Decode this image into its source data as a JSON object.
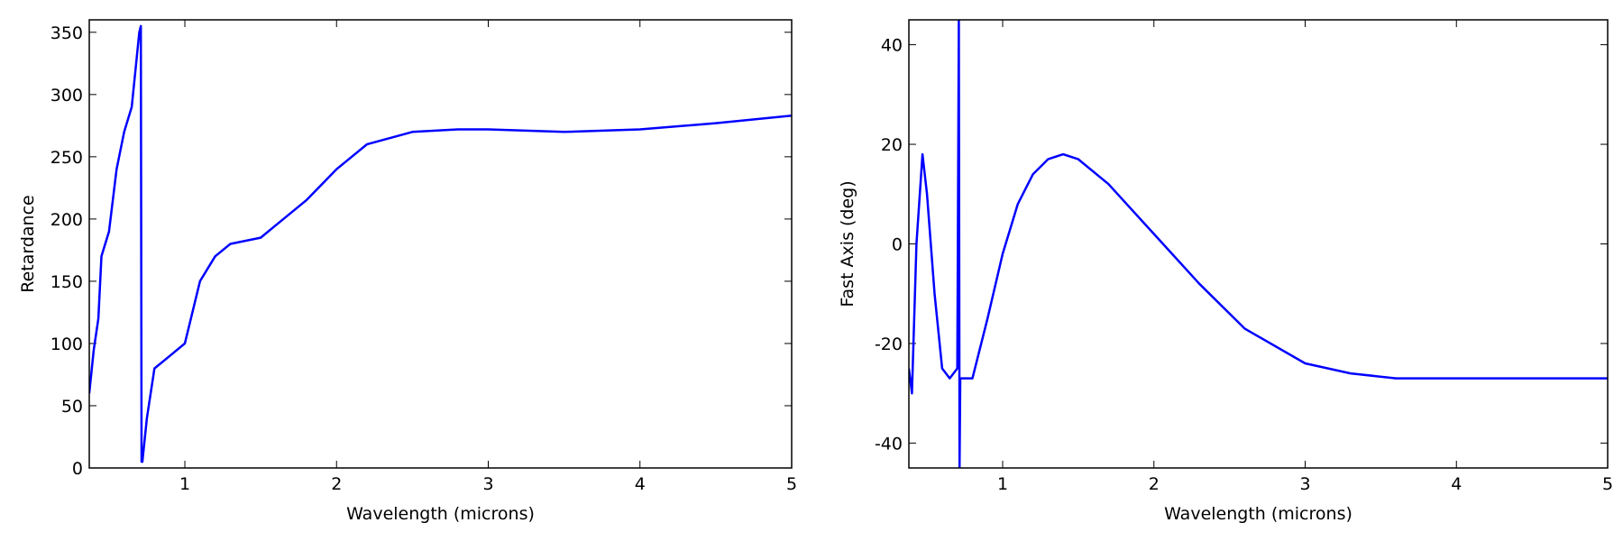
{
  "chart_data": [
    {
      "type": "line",
      "x_label": "Wavelength (microns)",
      "y_label": "Retardance",
      "xlim": [
        0.37,
        5
      ],
      "ylim": [
        0,
        360
      ],
      "xticks": [
        1,
        2,
        3,
        4,
        5
      ],
      "yticks": [
        0,
        50,
        100,
        150,
        200,
        250,
        300,
        350
      ],
      "x": [
        0.37,
        0.4,
        0.43,
        0.45,
        0.5,
        0.55,
        0.6,
        0.65,
        0.7,
        0.71,
        0.715,
        0.72,
        0.75,
        0.8,
        0.9,
        1.0,
        1.1,
        1.2,
        1.3,
        1.5,
        1.6,
        1.8,
        2.0,
        2.2,
        2.5,
        2.8,
        3.0,
        3.5,
        4.0,
        4.5,
        5.0
      ],
      "series": [
        {
          "color": "#0000ff",
          "values": [
            60,
            95,
            120,
            170,
            190,
            240,
            270,
            290,
            350,
            355,
            5,
            5,
            40,
            80,
            90,
            100,
            150,
            170,
            180,
            185,
            195,
            215,
            240,
            260,
            270,
            272,
            272,
            270,
            272,
            277,
            283
          ]
        }
      ]
    },
    {
      "type": "line",
      "x_label": "Wavelength (microns)",
      "y_label": "Fast Axis (deg)",
      "xlim": [
        0.38,
        5
      ],
      "ylim": [
        -45,
        45
      ],
      "xticks": [
        1,
        2,
        3,
        4,
        5
      ],
      "yticks": [
        -40,
        -20,
        0,
        20,
        40
      ],
      "x": [
        0.38,
        0.4,
        0.43,
        0.47,
        0.5,
        0.55,
        0.6,
        0.65,
        0.7,
        0.71,
        0.715,
        0.72,
        0.8,
        0.9,
        1.0,
        1.1,
        1.2,
        1.3,
        1.4,
        1.5,
        1.7,
        2.0,
        2.3,
        2.6,
        3.0,
        3.3,
        3.6,
        4.0,
        4.5,
        5.0
      ],
      "series": [
        {
          "color": "#0000ff",
          "values": [
            -25,
            -30,
            0,
            18,
            10,
            -10,
            -25,
            -27,
            -25,
            45,
            -45,
            -27,
            -27,
            -15,
            -2,
            8,
            14,
            17,
            18,
            17,
            12,
            2,
            -8,
            -17,
            -24,
            -26,
            -27,
            -27,
            -27,
            -27
          ]
        }
      ]
    }
  ]
}
